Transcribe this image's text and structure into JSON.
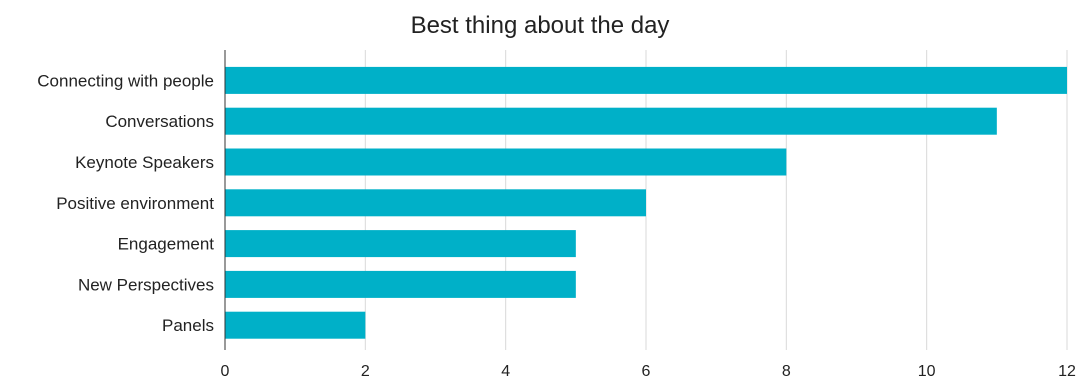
{
  "chart_data": {
    "type": "bar",
    "orientation": "horizontal",
    "title": "Best thing about the day",
    "xlabel": "",
    "ylabel": "",
    "categories": [
      "Connecting with people",
      "Conversations",
      "Keynote Speakers",
      "Positive environment",
      "Engagement",
      "New Perspectives",
      "Panels"
    ],
    "values": [
      12,
      11,
      8,
      6,
      5,
      5,
      2
    ],
    "xlim": [
      0,
      12
    ],
    "xticks": [
      0,
      2,
      4,
      6,
      8,
      10,
      12
    ],
    "grid": true,
    "legend": "none",
    "bar_color": "#00b0c8"
  }
}
